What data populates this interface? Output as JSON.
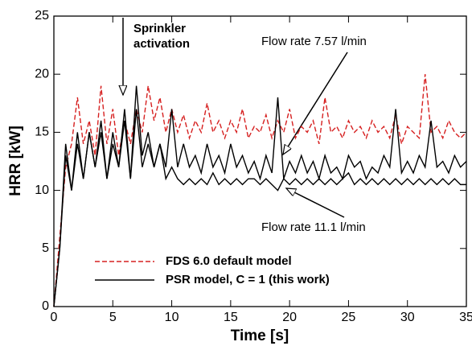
{
  "chart_data": {
    "type": "line",
    "xlabel": "Time [s]",
    "ylabel": "HRR [kW]",
    "x": [
      0,
      0.5,
      1,
      1.5,
      2,
      2.5,
      3,
      3.5,
      4,
      4.5,
      5,
      5.5,
      6,
      6.5,
      7,
      7.5,
      8,
      8.5,
      9,
      9.5,
      10,
      10.5,
      11,
      11.5,
      12,
      12.5,
      13,
      13.5,
      14,
      14.5,
      15,
      15.5,
      16,
      16.5,
      17,
      17.5,
      18,
      18.5,
      19,
      19.5,
      20,
      20.5,
      21,
      21.5,
      22,
      22.5,
      23,
      23.5,
      24,
      24.5,
      25,
      25.5,
      26,
      26.5,
      27,
      27.5,
      28,
      28.5,
      29,
      29.5,
      30,
      30.5,
      31,
      31.5,
      32,
      32.5,
      33,
      33.5,
      34,
      34.5,
      35
    ],
    "series": [
      {
        "name": "FDS 6.0 default model",
        "color": "#d62020",
        "linestyle": "dashed",
        "values": [
          0,
          6,
          12,
          14,
          18,
          14,
          16,
          13,
          19,
          14,
          17,
          13,
          16,
          14,
          17,
          15,
          19,
          16,
          18,
          15,
          17,
          15,
          16.5,
          14.5,
          16,
          15,
          17.5,
          15,
          16,
          14.5,
          16,
          15,
          17,
          14.5,
          15.5,
          15,
          16.5,
          14.5,
          16,
          15,
          17,
          14.5,
          15.5,
          15,
          16,
          14,
          18,
          15,
          15.5,
          14.5,
          16,
          15,
          15.5,
          14.5,
          16,
          15,
          15.5,
          14.5,
          16.5,
          14,
          15.5,
          15,
          14.5,
          20,
          15,
          15.5,
          14.5,
          16,
          15,
          14.5,
          15
        ]
      },
      {
        "name": "PSR model, C = 1 (this work)",
        "color": "#000000",
        "linestyle": "solid",
        "values": [
          0,
          5,
          14,
          10,
          15,
          11,
          15,
          12,
          16,
          11,
          15,
          12,
          17,
          11,
          19,
          13,
          15,
          12,
          14,
          12,
          17,
          12,
          14,
          12,
          13,
          11.5,
          14,
          12,
          13,
          11.5,
          14,
          12,
          13,
          11.5,
          12.5,
          11,
          13,
          11.5,
          18,
          11,
          12.5,
          11.5,
          13,
          11.5,
          12.5,
          11,
          13,
          11.5,
          12,
          11,
          13,
          12,
          12.5,
          11,
          12,
          11.5,
          13,
          12,
          17,
          11.5,
          12.5,
          11.5,
          13,
          12,
          16,
          12,
          12.5,
          11.5,
          13,
          12,
          12.5
        ]
      },
      {
        "color": "#000000",
        "linestyle": "solid",
        "values": [
          0,
          5,
          13,
          10,
          14,
          11,
          15,
          12,
          15,
          11,
          14,
          12,
          16,
          11,
          17,
          12,
          14,
          12,
          14,
          11,
          12,
          11,
          10.5,
          11,
          10.5,
          11,
          10.5,
          11.5,
          10.5,
          11,
          10.5,
          11,
          10.5,
          11,
          11,
          10.5,
          11,
          10.5,
          10,
          11,
          10.5,
          11,
          10.5,
          11,
          10.5,
          11,
          10.5,
          11,
          10.5,
          11,
          11.5,
          10.5,
          11,
          10.5,
          11,
          10.5,
          11,
          10.5,
          11,
          10.5,
          11,
          10.5,
          11,
          10.5,
          11,
          10.5,
          11,
          10.5,
          11,
          10.5,
          10.5
        ]
      }
    ],
    "annotations": [
      [
        "Sprinkler",
        "activation"
      ],
      "Flow rate 7.57 l/min",
      "Flow rate 11.1 l/min"
    ],
    "xlim": [
      0,
      35
    ],
    "xticks": [
      0,
      5,
      10,
      15,
      20,
      25,
      30,
      35
    ],
    "ylim": [
      0,
      25
    ],
    "yticks": [
      0,
      5,
      10,
      15,
      20,
      25
    ],
    "legend": "lower left"
  }
}
